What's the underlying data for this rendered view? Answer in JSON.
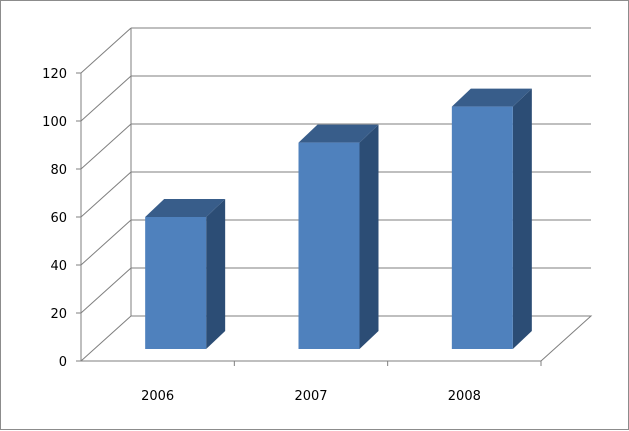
{
  "chart_data": {
    "type": "bar",
    "categories": [
      "2006",
      "2007",
      "2008"
    ],
    "values": [
      55,
      86,
      101
    ],
    "ylim": [
      0,
      120
    ],
    "yticks": [
      "0",
      "20",
      "40",
      "60",
      "80",
      "100",
      "120"
    ],
    "grid": true,
    "legend": "none",
    "colors": {
      "bar_front": "#4f81bd",
      "bar_side": "#2c4d75",
      "bar_top": "#385d8a",
      "gridline": "#7f7f7f"
    }
  }
}
